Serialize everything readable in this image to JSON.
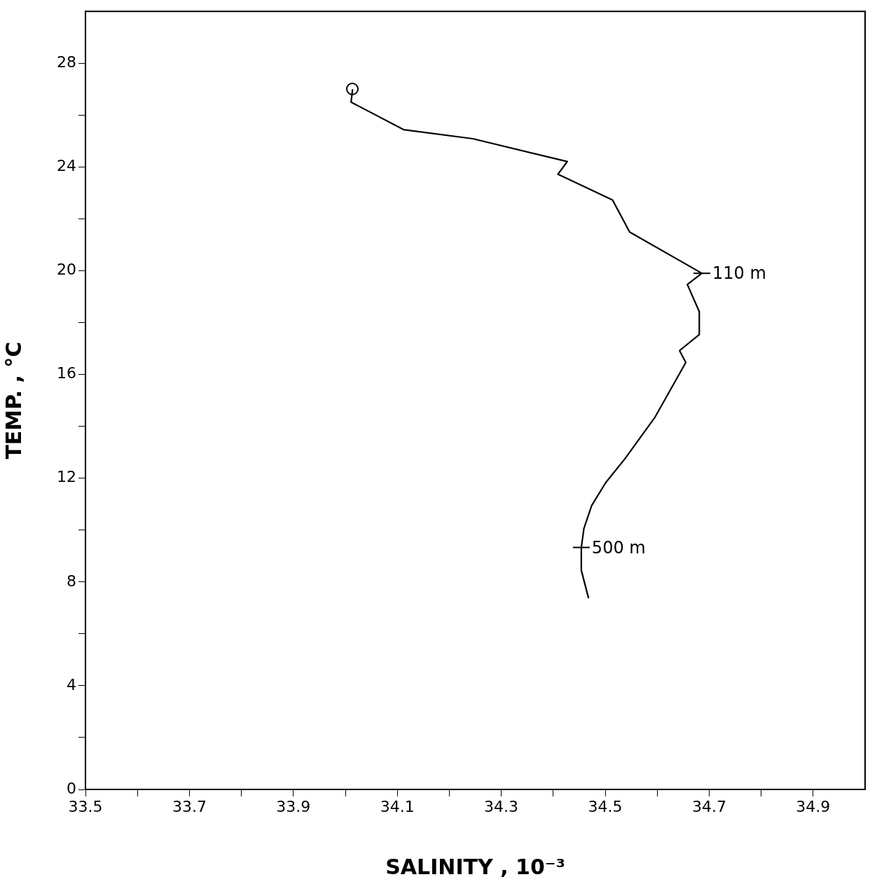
{
  "chart_data": {
    "type": "line",
    "xlabel": "SALINITY , 10⁻³",
    "ylabel": "TEMP. , °C",
    "xlim": [
      33.5,
      35.0
    ],
    "ylim": [
      0,
      30
    ],
    "xticks": [
      33.5,
      {
        "value": 33.6,
        "label": null
      },
      33.7,
      {
        "value": 33.8,
        "label": null
      },
      33.9,
      {
        "value": 34.0,
        "label": null
      },
      34.1,
      {
        "value": 34.2,
        "label": null
      },
      34.3,
      {
        "value": 34.4,
        "label": null
      },
      34.5,
      {
        "value": 34.6,
        "label": null
      },
      34.7,
      {
        "value": 34.8,
        "label": null
      },
      34.9
    ],
    "yticks": [
      0,
      {
        "value": 2,
        "label": null
      },
      4,
      {
        "value": 6,
        "label": null
      },
      8,
      {
        "value": 10,
        "label": null
      },
      12,
      {
        "value": 14,
        "label": null
      },
      16,
      {
        "value": 18,
        "label": null
      },
      20,
      {
        "value": 22,
        "label": null
      },
      24,
      {
        "value": 26,
        "label": null
      },
      28
    ],
    "grid": false,
    "legend": false,
    "marker": "none",
    "line_style": "solid",
    "series": [
      {
        "color": "#000000",
        "x": [
          34.014,
          34.011,
          34.112,
          34.245,
          34.427,
          34.409,
          34.514,
          34.547,
          34.686,
          34.658,
          34.681,
          34.681,
          34.643,
          34.655,
          34.596,
          34.538,
          34.501,
          34.474,
          34.459,
          34.454,
          34.454,
          34.468
        ],
        "values": [
          27.0,
          26.5,
          25.44,
          25.09,
          24.21,
          23.72,
          22.73,
          21.49,
          19.9,
          19.47,
          18.42,
          17.54,
          16.92,
          16.46,
          14.36,
          12.75,
          11.83,
          10.95,
          10.06,
          9.33,
          8.45,
          7.37
        ]
      }
    ],
    "annotations": [
      {
        "text": "110 m",
        "x": 34.686,
        "y": 19.9
      },
      {
        "text": "500 m",
        "x": 34.454,
        "y": 9.33
      }
    ]
  }
}
